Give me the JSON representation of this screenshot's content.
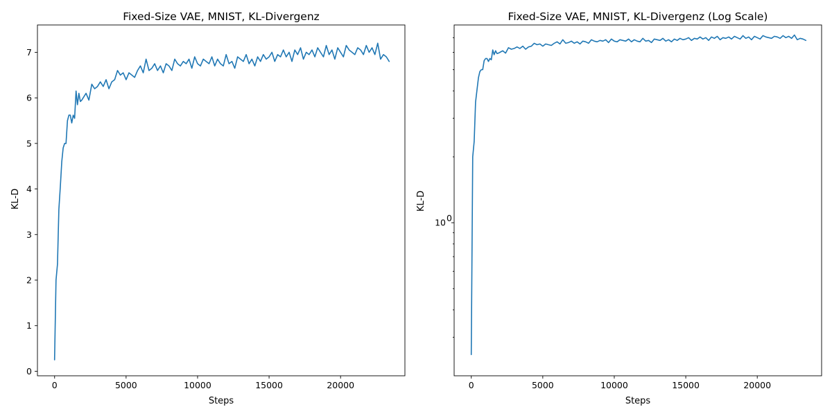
{
  "colors": {
    "series": "#1f77b4",
    "axes": "#000000",
    "background": "#ffffff"
  },
  "chart_data": [
    {
      "type": "line",
      "title": "Fixed-Size VAE, MNIST, KL-Divergenz",
      "xlabel": "Steps",
      "ylabel": "KL-D",
      "yscale": "linear",
      "xlim": [
        -1200,
        24500
      ],
      "ylim": [
        -0.1,
        7.6
      ],
      "xticks": [
        0,
        5000,
        10000,
        15000,
        20000
      ],
      "xtick_labels": [
        "0",
        "5000",
        "10000",
        "15000",
        "20000"
      ],
      "yticks": [
        0,
        1,
        2,
        3,
        4,
        5,
        6,
        7
      ],
      "ytick_labels": [
        "0",
        "1",
        "2",
        "3",
        "4",
        "5",
        "6",
        "7"
      ],
      "grid": false,
      "legend": "none",
      "series": [
        {
          "x": [
            0,
            100,
            200,
            300,
            400,
            500,
            600,
            700,
            800,
            900,
            1000,
            1100,
            1200,
            1300,
            1400,
            1500,
            1600,
            1700,
            1800,
            1900,
            2000,
            2200,
            2400,
            2600,
            2800,
            3000,
            3200,
            3400,
            3600,
            3800,
            4000,
            4200,
            4400,
            4600,
            4800,
            5000,
            5200,
            5400,
            5600,
            5800,
            6000,
            6200,
            6400,
            6600,
            6800,
            7000,
            7200,
            7400,
            7600,
            7800,
            8000,
            8200,
            8400,
            8600,
            8800,
            9000,
            9200,
            9400,
            9600,
            9800,
            10000,
            10200,
            10400,
            10600,
            10800,
            11000,
            11200,
            11400,
            11600,
            11800,
            12000,
            12200,
            12400,
            12600,
            12800,
            13000,
            13200,
            13400,
            13600,
            13800,
            14000,
            14200,
            14400,
            14600,
            14800,
            15000,
            15200,
            15400,
            15600,
            15800,
            16000,
            16200,
            16400,
            16600,
            16800,
            17000,
            17200,
            17400,
            17600,
            17800,
            18000,
            18200,
            18400,
            18600,
            18800,
            19000,
            19200,
            19400,
            19600,
            19800,
            20000,
            20200,
            20400,
            20600,
            20800,
            21000,
            21200,
            21400,
            21600,
            21800,
            22000,
            22200,
            22400,
            22600,
            22800,
            23000,
            23200,
            23400
          ],
          "values": [
            0.25,
            2.0,
            2.35,
            3.55,
            4.05,
            4.6,
            4.9,
            5.0,
            5.0,
            5.5,
            5.62,
            5.62,
            5.45,
            5.62,
            5.55,
            6.15,
            5.85,
            6.1,
            5.92,
            5.95,
            6.0,
            6.1,
            5.95,
            6.3,
            6.2,
            6.25,
            6.35,
            6.25,
            6.4,
            6.2,
            6.35,
            6.4,
            6.6,
            6.5,
            6.55,
            6.4,
            6.55,
            6.5,
            6.45,
            6.6,
            6.7,
            6.55,
            6.85,
            6.6,
            6.65,
            6.75,
            6.6,
            6.7,
            6.55,
            6.75,
            6.7,
            6.6,
            6.85,
            6.75,
            6.7,
            6.8,
            6.75,
            6.85,
            6.65,
            6.9,
            6.75,
            6.7,
            6.85,
            6.8,
            6.75,
            6.9,
            6.7,
            6.85,
            6.75,
            6.7,
            6.95,
            6.75,
            6.8,
            6.65,
            6.9,
            6.85,
            6.8,
            6.95,
            6.75,
            6.85,
            6.7,
            6.9,
            6.8,
            6.95,
            6.85,
            6.9,
            7.0,
            6.8,
            6.95,
            6.9,
            7.05,
            6.9,
            7.0,
            6.8,
            7.05,
            6.95,
            7.1,
            6.85,
            7.0,
            6.95,
            7.05,
            6.9,
            7.1,
            7.0,
            6.9,
            7.15,
            6.95,
            7.05,
            6.85,
            7.1,
            7.0,
            6.9,
            7.15,
            7.05,
            7.0,
            6.95,
            7.1,
            7.05,
            6.95,
            7.15,
            7.0,
            7.1,
            6.95,
            7.2,
            6.85,
            6.95,
            6.9,
            6.8
          ]
        }
      ]
    },
    {
      "type": "line",
      "title": "Fixed-Size VAE, MNIST, KL-Divergenz (Log Scale)",
      "xlabel": "Steps",
      "ylabel": "KL-D",
      "yscale": "log",
      "xlim": [
        -1200,
        24500
      ],
      "ylim": [
        0.2,
        8.0
      ],
      "xticks": [
        0,
        5000,
        10000,
        15000,
        20000
      ],
      "xtick_labels": [
        "0",
        "5000",
        "10000",
        "15000",
        "20000"
      ],
      "yticks_major": [
        1
      ],
      "ytick_labels_major": [
        {
          "base": "10",
          "exp": "0"
        }
      ],
      "yticks_minor": [
        0.3,
        0.4,
        0.5,
        0.6,
        0.7,
        0.8,
        0.9,
        2,
        3,
        4,
        5,
        6,
        7
      ],
      "grid": false,
      "legend": "none",
      "series": [
        {
          "x": [
            0,
            100,
            200,
            300,
            400,
            500,
            600,
            700,
            800,
            900,
            1000,
            1100,
            1200,
            1300,
            1400,
            1500,
            1600,
            1700,
            1800,
            1900,
            2000,
            2200,
            2400,
            2600,
            2800,
            3000,
            3200,
            3400,
            3600,
            3800,
            4000,
            4200,
            4400,
            4600,
            4800,
            5000,
            5200,
            5400,
            5600,
            5800,
            6000,
            6200,
            6400,
            6600,
            6800,
            7000,
            7200,
            7400,
            7600,
            7800,
            8000,
            8200,
            8400,
            8600,
            8800,
            9000,
            9200,
            9400,
            9600,
            9800,
            10000,
            10200,
            10400,
            10600,
            10800,
            11000,
            11200,
            11400,
            11600,
            11800,
            12000,
            12200,
            12400,
            12600,
            12800,
            13000,
            13200,
            13400,
            13600,
            13800,
            14000,
            14200,
            14400,
            14600,
            14800,
            15000,
            15200,
            15400,
            15600,
            15800,
            16000,
            16200,
            16400,
            16600,
            16800,
            17000,
            17200,
            17400,
            17600,
            17800,
            18000,
            18200,
            18400,
            18600,
            18800,
            19000,
            19200,
            19400,
            19600,
            19800,
            20000,
            20200,
            20400,
            20600,
            20800,
            21000,
            21200,
            21400,
            21600,
            21800,
            22000,
            22200,
            22400,
            22600,
            22800,
            23000,
            23200,
            23400
          ],
          "values": [
            0.25,
            2.0,
            2.35,
            3.55,
            4.05,
            4.6,
            4.9,
            5.0,
            5.0,
            5.5,
            5.62,
            5.62,
            5.45,
            5.62,
            5.55,
            6.15,
            5.85,
            6.1,
            5.92,
            5.95,
            6.0,
            6.1,
            5.95,
            6.3,
            6.2,
            6.25,
            6.35,
            6.25,
            6.4,
            6.2,
            6.35,
            6.4,
            6.6,
            6.5,
            6.55,
            6.4,
            6.55,
            6.5,
            6.45,
            6.6,
            6.7,
            6.55,
            6.85,
            6.6,
            6.65,
            6.75,
            6.6,
            6.7,
            6.55,
            6.75,
            6.7,
            6.6,
            6.85,
            6.75,
            6.7,
            6.8,
            6.75,
            6.85,
            6.65,
            6.9,
            6.75,
            6.7,
            6.85,
            6.8,
            6.75,
            6.9,
            6.7,
            6.85,
            6.75,
            6.7,
            6.95,
            6.75,
            6.8,
            6.65,
            6.9,
            6.85,
            6.8,
            6.95,
            6.75,
            6.85,
            6.7,
            6.9,
            6.8,
            6.95,
            6.85,
            6.9,
            7.0,
            6.8,
            6.95,
            6.9,
            7.05,
            6.9,
            7.0,
            6.8,
            7.05,
            6.95,
            7.1,
            6.85,
            7.0,
            6.95,
            7.05,
            6.9,
            7.1,
            7.0,
            6.9,
            7.15,
            6.95,
            7.05,
            6.85,
            7.1,
            7.0,
            6.9,
            7.15,
            7.05,
            7.0,
            6.95,
            7.1,
            7.05,
            6.95,
            7.15,
            7.0,
            7.1,
            6.95,
            7.2,
            6.85,
            6.95,
            6.9,
            6.8
          ]
        }
      ]
    }
  ]
}
